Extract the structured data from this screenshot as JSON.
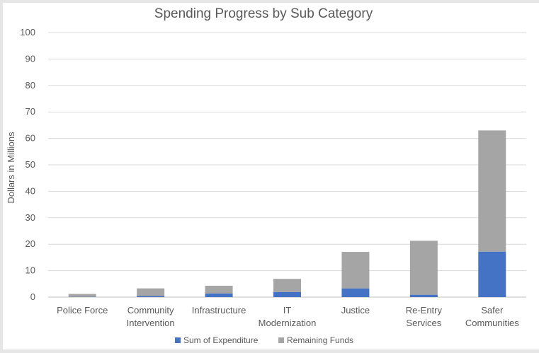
{
  "chart_data": {
    "type": "bar",
    "stacked": true,
    "title": "Spending Progress by Sub Category",
    "xlabel": "",
    "ylabel": "Dollars in Millions",
    "ylim": [
      0,
      100
    ],
    "yticks": [
      0,
      10,
      20,
      30,
      40,
      50,
      60,
      70,
      80,
      90,
      100
    ],
    "grid": true,
    "legend_position": "bottom",
    "categories": [
      [
        "Police Force"
      ],
      [
        "Community",
        "Intervention"
      ],
      [
        "Infrastructure"
      ],
      [
        "IT",
        "Modernization"
      ],
      [
        "Justice"
      ],
      [
        "Re-Entry",
        "Services"
      ],
      [
        "Safer",
        "Communities"
      ]
    ],
    "series": [
      {
        "name": "Sum of Expenditure",
        "color": "#4472c4",
        "values": [
          0.1,
          0.4,
          1.4,
          1.9,
          3.3,
          0.9,
          17.2
        ]
      },
      {
        "name": "Remaining Funds",
        "color": "#a5a5a5",
        "values": [
          1.1,
          2.9,
          2.9,
          5.0,
          13.8,
          20.4,
          45.8
        ]
      }
    ]
  }
}
